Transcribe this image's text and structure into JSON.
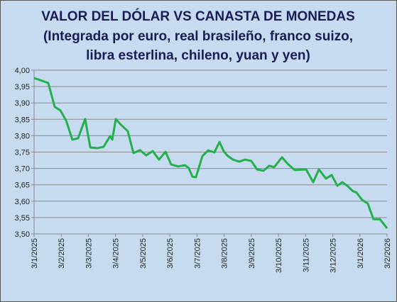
{
  "chart_data": {
    "type": "line",
    "title": "VALOR DEL DÓLAR VS CANASTA DE MONEDAS",
    "subtitle": [
      "(Integrada por euro, real brasileño, franco suizo,",
      "libra esterlina, chileno, yuan y yen)"
    ],
    "xlim": [
      0,
      13
    ],
    "xticks": [
      {
        "value": 0,
        "label": "3/1/2025"
      },
      {
        "value": 1,
        "label": "3/2/2025"
      },
      {
        "value": 2,
        "label": "3/3/2025"
      },
      {
        "value": 3,
        "label": "3/4/2025"
      },
      {
        "value": 4,
        "label": "3/5/2025"
      },
      {
        "value": 5,
        "label": "3/6/2025"
      },
      {
        "value": 6,
        "label": "3/7/2025"
      },
      {
        "value": 7,
        "label": "3/8/2025"
      },
      {
        "value": 8,
        "label": "3/9/2025"
      },
      {
        "value": 9,
        "label": "3/10/2025"
      },
      {
        "value": 10,
        "label": "3/11/2025"
      },
      {
        "value": 11,
        "label": "3/12/2025"
      },
      {
        "value": 12,
        "label": "3/1/2026"
      },
      {
        "value": 13,
        "label": "3/2/2026"
      }
    ],
    "ylim": [
      3.5,
      4.0
    ],
    "yticks": [
      {
        "value": 3.5,
        "label": "3,50"
      },
      {
        "value": 3.55,
        "label": "3,55"
      },
      {
        "value": 3.6,
        "label": "3,60"
      },
      {
        "value": 3.65,
        "label": "3,65"
      },
      {
        "value": 3.7,
        "label": "3,70"
      },
      {
        "value": 3.75,
        "label": "3,75"
      },
      {
        "value": 3.8,
        "label": "3,80"
      },
      {
        "value": 3.85,
        "label": "3,85"
      },
      {
        "value": 3.9,
        "label": "3,90"
      },
      {
        "value": 3.95,
        "label": "3,95"
      },
      {
        "value": 4.0,
        "label": "4,00"
      }
    ],
    "grid": true,
    "series": [
      {
        "color": "#22b04a",
        "x": [
          0,
          0.52,
          0.76,
          0.97,
          1.18,
          1.41,
          1.62,
          1.88,
          2.07,
          2.33,
          2.56,
          2.8,
          2.88,
          3.01,
          3.19,
          3.45,
          3.66,
          3.9,
          4.13,
          4.37,
          4.6,
          4.84,
          5.05,
          5.31,
          5.55,
          5.7,
          5.83,
          5.96,
          6.2,
          6.41,
          6.64,
          6.83,
          6.98,
          7.11,
          7.32,
          7.56,
          7.77,
          8.0,
          8.21,
          8.45,
          8.66,
          8.84,
          9.13,
          9.34,
          9.6,
          10.02,
          10.28,
          10.49,
          10.75,
          10.96,
          11.17,
          11.35,
          11.54,
          11.72,
          11.88,
          12.08,
          12.29,
          12.5,
          12.74,
          13.0
        ],
        "values": [
          3.976,
          3.961,
          3.888,
          3.877,
          3.846,
          3.788,
          3.792,
          3.851,
          3.764,
          3.762,
          3.766,
          3.799,
          3.788,
          3.851,
          3.834,
          3.814,
          3.747,
          3.756,
          3.74,
          3.753,
          3.727,
          3.751,
          3.712,
          3.706,
          3.71,
          3.701,
          3.675,
          3.673,
          3.738,
          3.755,
          3.749,
          3.781,
          3.753,
          3.74,
          3.727,
          3.721,
          3.727,
          3.723,
          3.697,
          3.693,
          3.708,
          3.704,
          3.734,
          3.714,
          3.695,
          3.697,
          3.658,
          3.697,
          3.669,
          3.68,
          3.647,
          3.658,
          3.647,
          3.632,
          3.626,
          3.604,
          3.593,
          3.545,
          3.545,
          3.517
        ]
      }
    ]
  }
}
